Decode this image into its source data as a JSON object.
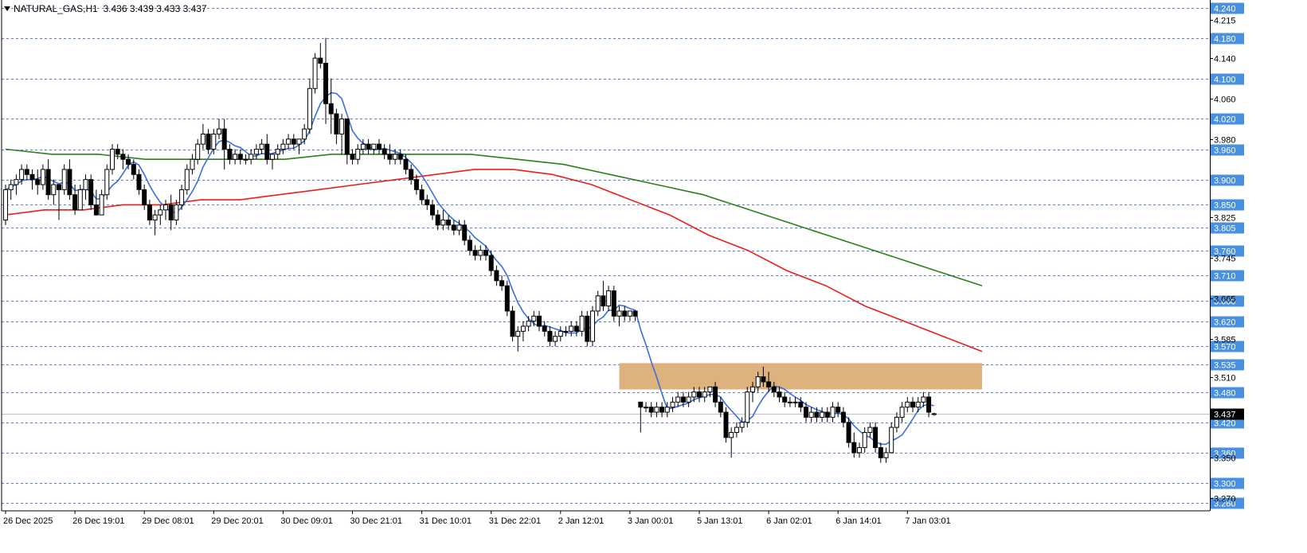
{
  "header": {
    "symbol": "NATURAL_GAS,H1",
    "ohlc": "3.436 3.439 3.433 3.437"
  },
  "colors": {
    "background": "#ffffff",
    "axis": "#000000",
    "grid_dash": "#5b7fc4",
    "level_label_bg": "#4a90e2",
    "level_label_text": "#ffffff",
    "price_label_bg": "#000000",
    "ma_fast": "#3a6fd8",
    "ma_mid": "#ee1c1c",
    "ma_slow": "#2e7d1e",
    "zone": "#ddb27e",
    "bull_candle": "#ffffff",
    "bear_candle": "#000000"
  },
  "chart_data": {
    "type": "candlestick",
    "symbol": "NATURAL_GAS",
    "timeframe": "H1",
    "ylim": [
      3.245,
      4.255
    ],
    "grid": false,
    "current_price": "3.437",
    "y_ticks": [
      "4.215",
      "4.140",
      "4.060",
      "3.980",
      "3.825",
      "3.745",
      "3.665",
      "3.585",
      "3.510",
      "3.350",
      "3.270"
    ],
    "level_lines": [
      "4.240",
      "4.180",
      "4.100",
      "4.020",
      "3.960",
      "3.900",
      "3.850",
      "3.805",
      "3.760",
      "3.710",
      "3.660",
      "3.620",
      "3.570",
      "3.535",
      "3.480",
      "3.420",
      "3.360",
      "3.300",
      "3.260"
    ],
    "x_labels": [
      "26 Dec 2025",
      "26 Dec 19:01",
      "29 Dec 08:01",
      "29 Dec 20:01",
      "30 Dec 09:01",
      "30 Dec 21:01",
      "31 Dec 10:01",
      "31 Dec 22:01",
      "2 Jan 12:01",
      "3 Jan 00:01",
      "5 Jan 13:01",
      "6 Jan 02:01",
      "6 Jan 14:01",
      "7 Jan 03:01"
    ],
    "x_label_bars": [
      0,
      13,
      26,
      39,
      52,
      65,
      78,
      91,
      104,
      117,
      130,
      143,
      156,
      169
    ],
    "zone": {
      "from_bar": 115,
      "to_bar": 183,
      "low": 3.485,
      "high": 3.537
    },
    "candles": [
      [
        3.82,
        3.89,
        3.81,
        3.88
      ],
      [
        3.88,
        3.9,
        3.86,
        3.89
      ],
      [
        3.89,
        3.91,
        3.87,
        3.9
      ],
      [
        3.9,
        3.93,
        3.89,
        3.92
      ],
      [
        3.92,
        3.93,
        3.9,
        3.91
      ],
      [
        3.91,
        3.92,
        3.88,
        3.9
      ],
      [
        3.9,
        3.92,
        3.87,
        3.89
      ],
      [
        3.89,
        3.93,
        3.88,
        3.92
      ],
      [
        3.92,
        3.94,
        3.86,
        3.87
      ],
      [
        3.87,
        3.9,
        3.85,
        3.89
      ],
      [
        3.89,
        3.88,
        3.82,
        3.88
      ],
      [
        3.88,
        3.93,
        3.87,
        3.92
      ],
      [
        3.92,
        3.94,
        3.86,
        3.87
      ],
      [
        3.87,
        3.89,
        3.83,
        3.84
      ],
      [
        3.84,
        3.89,
        3.84,
        3.88
      ],
      [
        3.88,
        3.91,
        3.86,
        3.9
      ],
      [
        3.9,
        3.91,
        3.84,
        3.85
      ],
      [
        3.85,
        3.88,
        3.83,
        3.83
      ],
      [
        3.83,
        3.88,
        3.83,
        3.87
      ],
      [
        3.87,
        3.93,
        3.86,
        3.92
      ],
      [
        3.92,
        3.97,
        3.91,
        3.96
      ],
      [
        3.96,
        3.97,
        3.94,
        3.95
      ],
      [
        3.95,
        3.96,
        3.92,
        3.94
      ],
      [
        3.94,
        3.95,
        3.92,
        3.93
      ],
      [
        3.93,
        3.94,
        3.9,
        3.91
      ],
      [
        3.91,
        3.92,
        3.87,
        3.88
      ],
      [
        3.88,
        3.89,
        3.84,
        3.85
      ],
      [
        3.85,
        3.86,
        3.81,
        3.82
      ],
      [
        3.82,
        3.84,
        3.79,
        3.83
      ],
      [
        3.83,
        3.85,
        3.81,
        3.84
      ],
      [
        3.84,
        3.86,
        3.82,
        3.85
      ],
      [
        3.85,
        3.87,
        3.8,
        3.82
      ],
      [
        3.82,
        3.86,
        3.81,
        3.85
      ],
      [
        3.85,
        3.89,
        3.84,
        3.88
      ],
      [
        3.88,
        3.93,
        3.87,
        3.92
      ],
      [
        3.92,
        3.95,
        3.91,
        3.94
      ],
      [
        3.94,
        3.98,
        3.93,
        3.97
      ],
      [
        3.97,
        4.01,
        3.96,
        3.99
      ],
      [
        3.99,
        4.0,
        3.95,
        3.96
      ],
      [
        3.96,
        4.0,
        3.95,
        3.99
      ],
      [
        3.99,
        4.02,
        3.98,
        4.0
      ],
      [
        4.0,
        4.02,
        3.92,
        3.96
      ],
      [
        3.96,
        3.97,
        3.93,
        3.94
      ],
      [
        3.94,
        3.96,
        3.93,
        3.95
      ],
      [
        3.95,
        3.96,
        3.93,
        3.94
      ],
      [
        3.94,
        3.95,
        3.93,
        3.94
      ],
      [
        3.94,
        3.96,
        3.93,
        3.95
      ],
      [
        3.95,
        3.97,
        3.94,
        3.96
      ],
      [
        3.96,
        3.98,
        3.95,
        3.97
      ],
      [
        3.97,
        3.99,
        3.93,
        3.94
      ],
      [
        3.94,
        3.95,
        3.92,
        3.95
      ],
      [
        3.95,
        3.97,
        3.94,
        3.96
      ],
      [
        3.96,
        3.98,
        3.95,
        3.97
      ],
      [
        3.97,
        3.99,
        3.96,
        3.98
      ],
      [
        3.98,
        3.99,
        3.96,
        3.97
      ],
      [
        3.97,
        3.98,
        3.95,
        3.98
      ],
      [
        3.98,
        4.01,
        3.97,
        4.0
      ],
      [
        4.0,
        4.1,
        3.99,
        4.08
      ],
      [
        4.08,
        4.15,
        4.07,
        4.14
      ],
      [
        4.14,
        4.17,
        4.12,
        4.13
      ],
      [
        4.13,
        4.18,
        4.01,
        4.05
      ],
      [
        4.05,
        4.1,
        3.99,
        4.03
      ],
      [
        4.03,
        4.04,
        3.97,
        3.99
      ],
      [
        3.99,
        4.03,
        3.95,
        4.02
      ],
      [
        4.02,
        4.02,
        3.93,
        3.95
      ],
      [
        3.95,
        3.96,
        3.93,
        3.94
      ],
      [
        3.94,
        3.97,
        3.93,
        3.96
      ],
      [
        3.96,
        3.98,
        3.95,
        3.97
      ],
      [
        3.97,
        3.98,
        3.95,
        3.96
      ],
      [
        3.96,
        3.97,
        3.95,
        3.97
      ],
      [
        3.97,
        3.98,
        3.95,
        3.96
      ],
      [
        3.96,
        3.97,
        3.94,
        3.95
      ],
      [
        3.95,
        3.97,
        3.93,
        3.94
      ],
      [
        3.94,
        3.96,
        3.93,
        3.95
      ],
      [
        3.95,
        3.96,
        3.93,
        3.94
      ],
      [
        3.94,
        3.95,
        3.91,
        3.92
      ],
      [
        3.92,
        3.93,
        3.89,
        3.9
      ],
      [
        3.9,
        3.91,
        3.87,
        3.88
      ],
      [
        3.88,
        3.89,
        3.85,
        3.86
      ],
      [
        3.86,
        3.87,
        3.84,
        3.85
      ],
      [
        3.85,
        3.86,
        3.82,
        3.83
      ],
      [
        3.83,
        3.84,
        3.8,
        3.81
      ],
      [
        3.81,
        3.84,
        3.8,
        3.82
      ],
      [
        3.82,
        3.83,
        3.8,
        3.81
      ],
      [
        3.81,
        3.82,
        3.79,
        3.8
      ],
      [
        3.8,
        3.82,
        3.79,
        3.81
      ],
      [
        3.81,
        3.82,
        3.77,
        3.78
      ],
      [
        3.78,
        3.79,
        3.75,
        3.76
      ],
      [
        3.76,
        3.77,
        3.74,
        3.75
      ],
      [
        3.75,
        3.77,
        3.74,
        3.76
      ],
      [
        3.76,
        3.77,
        3.74,
        3.75
      ],
      [
        3.75,
        3.76,
        3.71,
        3.72
      ],
      [
        3.72,
        3.73,
        3.69,
        3.7
      ],
      [
        3.7,
        3.71,
        3.68,
        3.69
      ],
      [
        3.69,
        3.7,
        3.63,
        3.64
      ],
      [
        3.64,
        3.65,
        3.58,
        3.59
      ],
      [
        3.59,
        3.61,
        3.56,
        3.6
      ],
      [
        3.6,
        3.62,
        3.58,
        3.61
      ],
      [
        3.61,
        3.63,
        3.6,
        3.62
      ],
      [
        3.62,
        3.64,
        3.61,
        3.63
      ],
      [
        3.63,
        3.64,
        3.6,
        3.61
      ],
      [
        3.61,
        3.62,
        3.59,
        3.6
      ],
      [
        3.6,
        3.61,
        3.57,
        3.58
      ],
      [
        3.58,
        3.6,
        3.57,
        3.59
      ],
      [
        3.59,
        3.61,
        3.58,
        3.6
      ],
      [
        3.6,
        3.61,
        3.59,
        3.6
      ],
      [
        3.6,
        3.62,
        3.59,
        3.61
      ],
      [
        3.61,
        3.62,
        3.59,
        3.6
      ],
      [
        3.6,
        3.64,
        3.59,
        3.63
      ],
      [
        3.63,
        3.64,
        3.57,
        3.58
      ],
      [
        3.58,
        3.65,
        3.57,
        3.64
      ],
      [
        3.64,
        3.68,
        3.63,
        3.67
      ],
      [
        3.67,
        3.7,
        3.64,
        3.65
      ],
      [
        3.65,
        3.69,
        3.64,
        3.68
      ],
      [
        3.68,
        3.69,
        3.62,
        3.63
      ],
      [
        3.63,
        3.65,
        3.61,
        3.64
      ],
      [
        3.64,
        3.65,
        3.62,
        3.63
      ],
      [
        3.63,
        3.64,
        3.62,
        3.64
      ],
      [
        3.64,
        3.64,
        3.62,
        3.63
      ],
      [
        3.46,
        3.46,
        3.4,
        3.45
      ],
      [
        3.45,
        3.46,
        3.44,
        3.45
      ],
      [
        3.45,
        3.46,
        3.43,
        3.44
      ],
      [
        3.44,
        3.46,
        3.43,
        3.45
      ],
      [
        3.45,
        3.46,
        3.43,
        3.44
      ],
      [
        3.44,
        3.46,
        3.43,
        3.45
      ],
      [
        3.45,
        3.47,
        3.44,
        3.46
      ],
      [
        3.46,
        3.48,
        3.45,
        3.47
      ],
      [
        3.47,
        3.48,
        3.45,
        3.46
      ],
      [
        3.46,
        3.48,
        3.45,
        3.47
      ],
      [
        3.47,
        3.49,
        3.46,
        3.48
      ],
      [
        3.48,
        3.49,
        3.46,
        3.47
      ],
      [
        3.47,
        3.49,
        3.46,
        3.48
      ],
      [
        3.48,
        3.49,
        3.47,
        3.49
      ],
      [
        3.49,
        3.5,
        3.45,
        3.46
      ],
      [
        3.46,
        3.47,
        3.43,
        3.44
      ],
      [
        3.44,
        3.45,
        3.38,
        3.39
      ],
      [
        3.39,
        3.41,
        3.35,
        3.4
      ],
      [
        3.4,
        3.42,
        3.39,
        3.41
      ],
      [
        3.41,
        3.43,
        3.4,
        3.42
      ],
      [
        3.42,
        3.49,
        3.41,
        3.48
      ],
      [
        3.48,
        3.5,
        3.46,
        3.49
      ],
      [
        3.49,
        3.52,
        3.48,
        3.51
      ],
      [
        3.51,
        3.53,
        3.49,
        3.5
      ],
      [
        3.5,
        3.52,
        3.48,
        3.49
      ],
      [
        3.49,
        3.5,
        3.47,
        3.48
      ],
      [
        3.48,
        3.49,
        3.46,
        3.47
      ],
      [
        3.47,
        3.48,
        3.45,
        3.46
      ],
      [
        3.46,
        3.47,
        3.45,
        3.46
      ],
      [
        3.46,
        3.47,
        3.45,
        3.46
      ],
      [
        3.46,
        3.47,
        3.44,
        3.45
      ],
      [
        3.45,
        3.46,
        3.42,
        3.43
      ],
      [
        3.43,
        3.45,
        3.42,
        3.44
      ],
      [
        3.44,
        3.45,
        3.42,
        3.43
      ],
      [
        3.43,
        3.45,
        3.42,
        3.44
      ],
      [
        3.44,
        3.45,
        3.42,
        3.43
      ],
      [
        3.43,
        3.46,
        3.42,
        3.45
      ],
      [
        3.45,
        3.46,
        3.43,
        3.44
      ],
      [
        3.44,
        3.45,
        3.41,
        3.42
      ],
      [
        3.42,
        3.43,
        3.37,
        3.38
      ],
      [
        3.38,
        3.4,
        3.35,
        3.36
      ],
      [
        3.36,
        3.38,
        3.35,
        3.37
      ],
      [
        3.37,
        3.41,
        3.36,
        3.4
      ],
      [
        3.4,
        3.42,
        3.39,
        3.41
      ],
      [
        3.41,
        3.42,
        3.36,
        3.37
      ],
      [
        3.37,
        3.38,
        3.34,
        3.35
      ],
      [
        3.35,
        3.37,
        3.34,
        3.36
      ],
      [
        3.36,
        3.42,
        3.36,
        3.41
      ],
      [
        3.41,
        3.44,
        3.4,
        3.43
      ],
      [
        3.43,
        3.46,
        3.42,
        3.45
      ],
      [
        3.45,
        3.47,
        3.44,
        3.46
      ],
      [
        3.46,
        3.47,
        3.44,
        3.45
      ],
      [
        3.45,
        3.47,
        3.44,
        3.46
      ],
      [
        3.46,
        3.48,
        3.45,
        3.47
      ],
      [
        3.47,
        3.48,
        3.43,
        3.44
      ],
      [
        3.436,
        3.439,
        3.433,
        3.437
      ]
    ],
    "ma_fast": [
      3.82,
      3.85,
      3.87,
      3.88,
      3.89,
      3.89,
      3.9,
      3.9,
      3.89,
      3.89,
      3.89,
      3.88,
      3.88,
      3.87,
      3.87,
      3.88,
      3.89,
      3.9,
      3.9,
      3.89,
      3.88,
      3.87,
      3.86,
      3.85,
      3.85,
      3.86,
      3.87,
      3.88,
      3.89,
      3.91,
      3.93,
      3.94,
      3.95,
      3.95,
      3.95,
      3.96,
      3.97,
      3.98,
      3.99,
      4.0,
      4.0,
      3.99,
      3.99,
      3.98,
      3.97,
      3.97,
      3.96,
      3.96,
      3.95,
      3.93,
      3.91,
      3.88,
      3.85,
      3.82,
      3.79,
      3.76,
      3.73,
      3.71,
      3.69,
      3.67,
      3.66,
      3.65,
      3.64,
      3.64,
      3.64,
      3.63,
      3.62,
      3.6,
      3.58,
      3.56,
      3.54,
      3.53,
      3.52,
      3.51,
      3.5,
      3.49,
      3.48,
      3.48,
      3.47,
      3.47,
      3.47,
      3.48,
      3.48,
      3.47,
      3.47,
      3.47,
      3.46,
      3.45,
      3.45,
      3.44,
      3.43,
      3.42,
      3.41,
      3.4,
      3.4,
      3.41,
      3.42,
      3.42,
      3.43,
      3.43,
      3.43
    ],
    "ma_fast_bars": [
      0,
      3,
      6,
      9,
      12,
      15,
      18,
      21,
      24,
      27,
      30,
      33,
      36,
      39,
      42,
      45,
      48,
      51,
      54,
      57,
      60,
      63,
      66,
      69,
      72,
      75,
      78,
      81,
      84,
      87,
      90,
      93,
      96,
      99,
      102,
      105,
      108,
      111,
      114,
      117,
      120,
      123,
      126,
      129,
      132,
      135,
      138,
      141,
      144,
      147,
      150,
      153,
      156,
      159,
      162,
      165,
      168,
      171,
      174,
      177,
      180,
      183,
      186,
      189,
      192,
      195,
      198,
      201,
      204,
      207,
      210,
      213,
      216,
      219,
      222,
      225,
      228,
      231,
      234,
      237,
      240,
      243,
      246,
      249,
      252,
      255,
      258,
      261,
      264,
      267,
      270,
      273,
      276,
      279,
      282,
      285,
      288,
      291,
      294,
      297,
      300
    ],
    "ma_mid": [
      3.83,
      3.84,
      3.84,
      3.85,
      3.85,
      3.86,
      3.86,
      3.87,
      3.88,
      3.89,
      3.9,
      3.91,
      3.92,
      3.92,
      3.91,
      3.89,
      3.86,
      3.83,
      3.79,
      3.76,
      3.72,
      3.69,
      3.65,
      3.62,
      3.59,
      3.56
    ],
    "ma_slow": [
      3.96,
      3.95,
      3.95,
      3.94,
      3.94,
      3.94,
      3.94,
      3.95,
      3.95,
      3.95,
      3.95,
      3.94,
      3.93,
      3.91,
      3.89,
      3.87,
      3.84,
      3.81,
      3.78,
      3.75,
      3.72,
      3.69
    ],
    "ma_fast_x": [],
    "ma_end_bar": 183
  }
}
